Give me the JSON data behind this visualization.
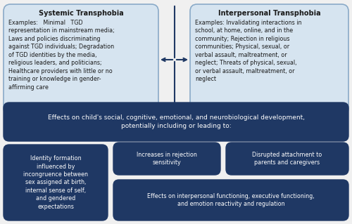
{
  "bg_color": "#f0f0f0",
  "light_box_color": "#d6e4f0",
  "dark_box_color": "#1f3864",
  "light_box_border": "#8aaac8",
  "arrow_color": "#1f3864",
  "text_light_color": "#1a1a1a",
  "text_dark_color": "#ffffff",
  "systemic_title": "Systemic Transphobia",
  "systemic_body": "Examples:   Minimal   TGD\nrepresentation in mainstream media;\nLaws and policies discriminating\nagainst TGD individuals; Degradation\nof TGD identities by the media,\nreligious leaders, and politicians;\nHealthcare providers with little or no\ntraining or knowledge in gender-\naffirming care",
  "interpersonal_title": "Interpersonal Transphobia",
  "interpersonal_body": "Examples: Invalidating interactions in\nschool, at home, online, and in the\ncommunity; Rejection in religious\ncommunities; Physical, sexual, or\nverbal assault, maltreatment, or\nneglect; Threats of physical, sexual,\nor verbal assault, maltreatment, or\nneglect",
  "middle_box_text": "Effects on child's social, cognitive, emotional, and neurobiological development,\npotentially including or leading to:",
  "box1_text": "Identity formation\ninfluenced by\nincongruence between\nsex assigned at birth,\ninternal sense of self,\nand gendered\nexpectations",
  "box2_text": "Increases in rejection\nsensitivity",
  "box3_text": "Disrupted attachment to\nparents and caregivers",
  "box4_text": "Effects on interpersonal functioning, executive functioning,\nand emotion reactivity and regulation"
}
